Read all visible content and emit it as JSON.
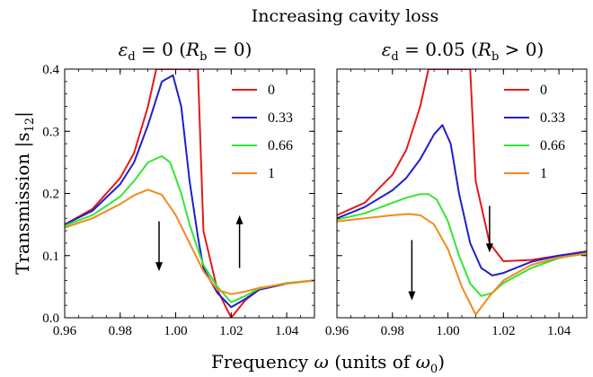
{
  "header": {
    "title": "Increasing cavity loss"
  },
  "axes": {
    "ylabel_prefix": "Transmission",
    "ylabel_symbol": "|s",
    "ylabel_sub": "12",
    "ylabel_suffix": "|",
    "xlabel_prefix": "Frequency",
    "xlabel_symbol": "ω",
    "xlabel_units": "(units of",
    "xlabel_units_symbol": "ω",
    "xlabel_units_sub": "0",
    "xlabel_units_end": ")"
  },
  "panels": [
    {
      "title_eps": "ε",
      "title_eps_sub": "d",
      "title_rest": " = 0 (",
      "title_R": "R",
      "title_R_sub": "b",
      "title_end": " = 0)"
    },
    {
      "title_eps": "ε",
      "title_eps_sub": "d",
      "title_rest": " = 0.05 (",
      "title_R": "R",
      "title_R_sub": "b",
      "title_end": " > 0)"
    }
  ],
  "chart_data": [
    {
      "type": "line",
      "xlim": [
        0.96,
        1.05
      ],
      "ylim": [
        0,
        0.4
      ],
      "xticks": [
        "0.96",
        "0.98",
        "1.00",
        "1.02",
        "1.04"
      ],
      "yticks": [
        "0.0",
        "0.1",
        "0.2",
        "0.3",
        "0.4"
      ],
      "legend_position": "top-right",
      "series": [
        {
          "name": "0",
          "color": "#e31a1c",
          "x": [
            0.96,
            0.97,
            0.98,
            0.985,
            0.99,
            0.993,
            0.995,
            1.005,
            1.008,
            1.01,
            1.015,
            1.02,
            1.025,
            1.03,
            1.04,
            1.05
          ],
          "y": [
            0.15,
            0.175,
            0.225,
            0.265,
            0.34,
            0.4,
            0.4,
            0.4,
            0.4,
            0.14,
            0.045,
            0.0,
            0.028,
            0.045,
            0.055,
            0.06
          ]
        },
        {
          "name": "0.33",
          "color": "#1f1fcc",
          "x": [
            0.96,
            0.97,
            0.98,
            0.985,
            0.99,
            0.995,
            0.999,
            1.002,
            1.005,
            1.008,
            1.01,
            1.015,
            1.02,
            1.025,
            1.03,
            1.04,
            1.05
          ],
          "y": [
            0.15,
            0.172,
            0.215,
            0.25,
            0.31,
            0.38,
            0.39,
            0.34,
            0.22,
            0.13,
            0.08,
            0.04,
            0.017,
            0.03,
            0.045,
            0.055,
            0.06
          ]
        },
        {
          "name": "0.66",
          "color": "#33e633",
          "x": [
            0.96,
            0.97,
            0.98,
            0.985,
            0.99,
            0.995,
            0.998,
            1.002,
            1.005,
            1.008,
            1.01,
            1.015,
            1.02,
            1.025,
            1.03,
            1.04,
            1.05
          ],
          "y": [
            0.148,
            0.165,
            0.195,
            0.22,
            0.25,
            0.26,
            0.25,
            0.2,
            0.15,
            0.11,
            0.085,
            0.05,
            0.025,
            0.035,
            0.047,
            0.056,
            0.06
          ]
        },
        {
          "name": "1",
          "color": "#f28a1c",
          "x": [
            0.96,
            0.97,
            0.98,
            0.985,
            0.99,
            0.995,
            1.0,
            1.005,
            1.01,
            1.015,
            1.02,
            1.025,
            1.03,
            1.04,
            1.05
          ],
          "y": [
            0.145,
            0.16,
            0.183,
            0.197,
            0.206,
            0.198,
            0.165,
            0.12,
            0.075,
            0.045,
            0.038,
            0.042,
            0.048,
            0.055,
            0.06
          ]
        }
      ],
      "annotations": [
        {
          "type": "arrow-down",
          "x": 0.994,
          "y_from": 0.155,
          "y_to": 0.075
        },
        {
          "type": "arrow-up",
          "x": 1.023,
          "y_from": 0.08,
          "y_to": 0.165
        }
      ]
    },
    {
      "type": "line",
      "xlim": [
        0.96,
        1.05
      ],
      "ylim": [
        0,
        0.4
      ],
      "xticks": [
        "0.96",
        "0.98",
        "1.00",
        "1.02",
        "1.04"
      ],
      "yticks": [],
      "legend_position": "top-right",
      "series": [
        {
          "name": "0",
          "color": "#e31a1c",
          "x": [
            0.96,
            0.97,
            0.98,
            0.985,
            0.99,
            0.993,
            0.995,
            1.005,
            1.008,
            1.01,
            1.015,
            1.02,
            1.03,
            1.04,
            1.05
          ],
          "y": [
            0.165,
            0.185,
            0.23,
            0.27,
            0.34,
            0.4,
            0.4,
            0.4,
            0.4,
            0.22,
            0.12,
            0.091,
            0.093,
            0.1,
            0.107
          ]
        },
        {
          "name": "0.33",
          "color": "#1f1fcc",
          "x": [
            0.96,
            0.97,
            0.98,
            0.985,
            0.99,
            0.995,
            0.998,
            1.001,
            1.004,
            1.008,
            1.012,
            1.016,
            1.02,
            1.03,
            1.04,
            1.05
          ],
          "y": [
            0.16,
            0.178,
            0.205,
            0.225,
            0.255,
            0.295,
            0.31,
            0.28,
            0.2,
            0.12,
            0.08,
            0.068,
            0.072,
            0.09,
            0.1,
            0.106
          ]
        },
        {
          "name": "0.66",
          "color": "#33e633",
          "x": [
            0.96,
            0.97,
            0.98,
            0.985,
            0.99,
            0.993,
            0.996,
            1.0,
            1.004,
            1.008,
            1.012,
            1.016,
            1.02,
            1.03,
            1.04,
            1.05
          ],
          "y": [
            0.158,
            0.168,
            0.185,
            0.193,
            0.199,
            0.199,
            0.19,
            0.155,
            0.1,
            0.055,
            0.035,
            0.04,
            0.056,
            0.08,
            0.096,
            0.104
          ]
        },
        {
          "name": "1",
          "color": "#f28a1c",
          "x": [
            0.96,
            0.97,
            0.98,
            0.986,
            0.99,
            0.995,
            1.0,
            1.005,
            1.01,
            1.015,
            1.02,
            1.03,
            1.04,
            1.05
          ],
          "y": [
            0.155,
            0.16,
            0.165,
            0.167,
            0.165,
            0.15,
            0.11,
            0.05,
            0.005,
            0.035,
            0.06,
            0.085,
            0.097,
            0.103
          ]
        }
      ],
      "annotations": [
        {
          "type": "arrow-down",
          "x": 1.015,
          "y_from": 0.18,
          "y_to": 0.105
        },
        {
          "type": "arrow-down",
          "x": 0.987,
          "y_from": 0.125,
          "y_to": 0.028
        }
      ]
    }
  ]
}
